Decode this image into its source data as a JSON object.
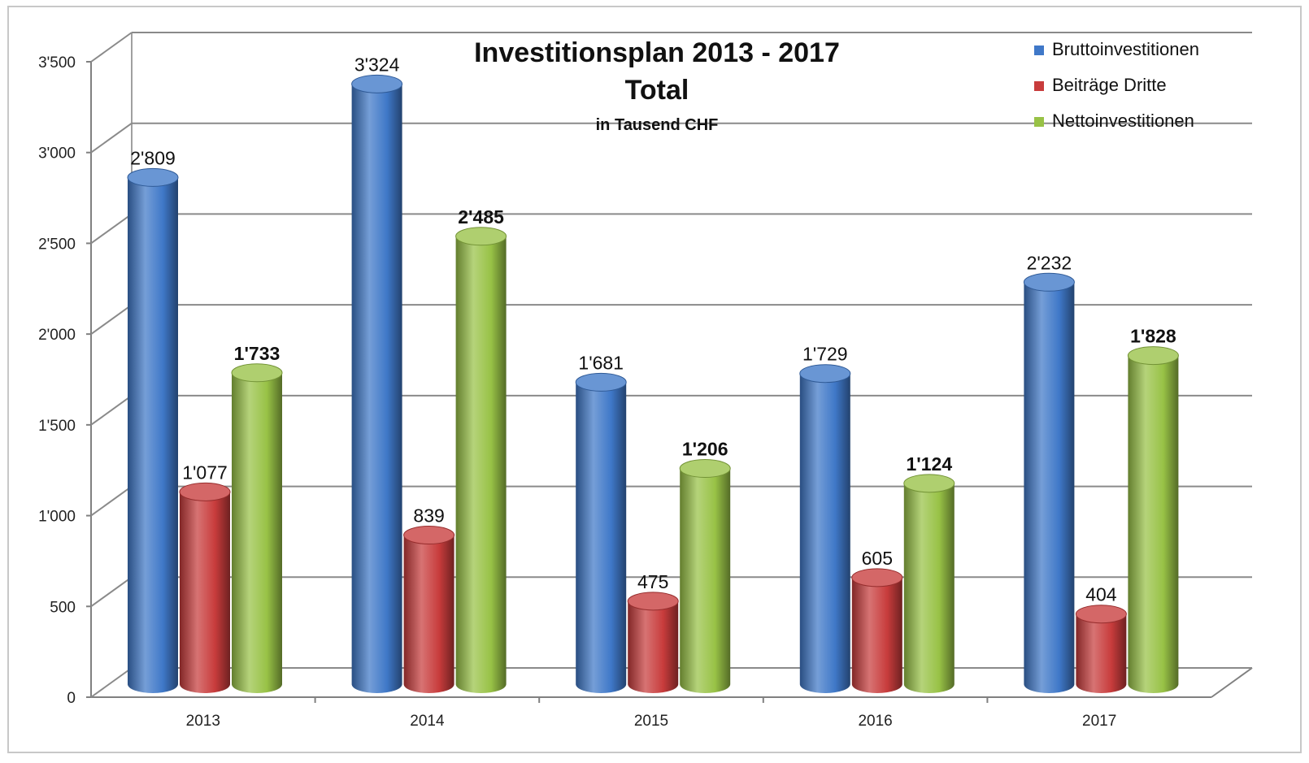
{
  "chart_data": {
    "type": "bar",
    "title": "Investitionsplan 2013 - 2017",
    "title_line2": "Total",
    "subtitle": "in Tausend CHF",
    "xlabel": "",
    "ylabel": "",
    "categories": [
      "2013",
      "2014",
      "2015",
      "2016",
      "2017"
    ],
    "ylim": [
      0,
      3500
    ],
    "yticks": [
      0,
      500,
      1000,
      1500,
      2000,
      2500,
      3000,
      3500
    ],
    "ytick_labels": [
      "0",
      "500",
      "1'000",
      "1'500",
      "2'000",
      "2'500",
      "3'000",
      "3'500"
    ],
    "grid": true,
    "legend_position": "top-right",
    "bar_style": "3d-cylinder",
    "series": [
      {
        "name": "Bruttoinvestitionen",
        "color": "#3f78c8",
        "label_bold": false,
        "values": [
          2809,
          3324,
          1681,
          1729,
          2232
        ],
        "labels": [
          "2'809",
          "3'324",
          "1'681",
          "1'729",
          "2'232"
        ]
      },
      {
        "name": "Beiträge Dritte",
        "color": "#c83c3c",
        "label_bold": false,
        "values": [
          1077,
          839,
          475,
          605,
          404
        ],
        "labels": [
          "1'077",
          "839",
          "475",
          "605",
          "404"
        ]
      },
      {
        "name": "Nettoinvestitionen",
        "color": "#98c246",
        "label_bold": true,
        "values": [
          1733,
          2485,
          1206,
          1124,
          1828
        ],
        "labels": [
          "1'733",
          "2'485",
          "1'206",
          "1'124",
          "1'828"
        ]
      }
    ]
  }
}
